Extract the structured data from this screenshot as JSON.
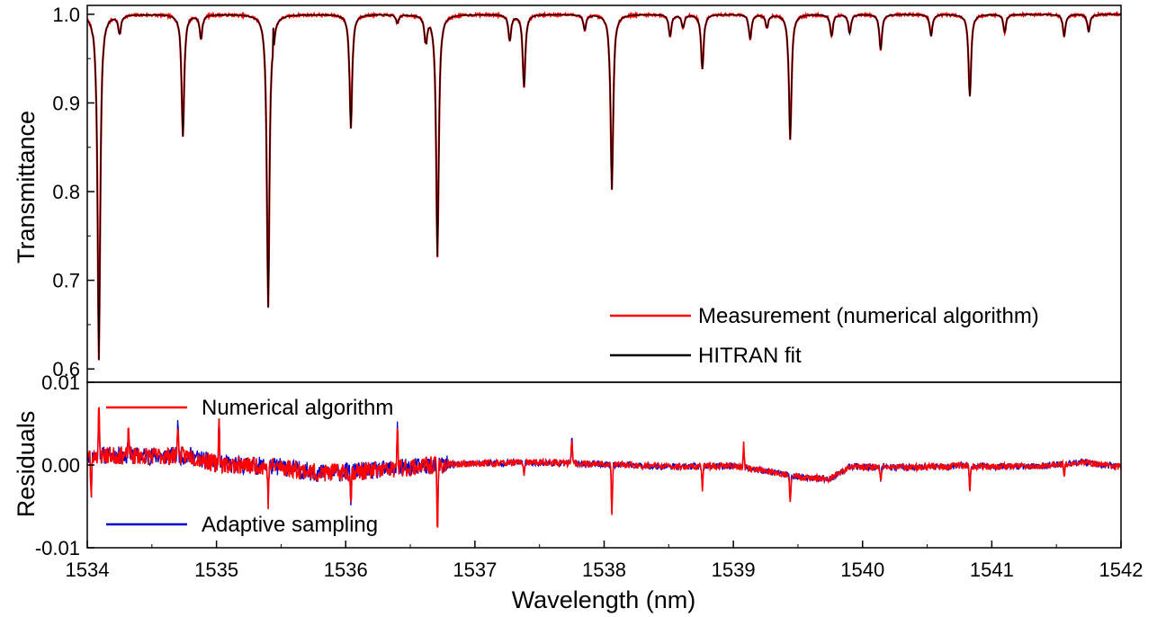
{
  "chart_data": [
    {
      "type": "line",
      "panel": "top",
      "xlabel": "Wavelength (nm)",
      "ylabel": "Transmittance",
      "xlim": [
        1534,
        1542
      ],
      "ylim": [
        0.585,
        1.01
      ],
      "y_ticks": [
        0.6,
        0.7,
        0.8,
        0.9,
        1.0
      ],
      "y_tick_labels": [
        "0.6",
        "0.7",
        "0.8",
        "0.9",
        "1.0"
      ],
      "grid": false,
      "legend_position": "bottom-right",
      "baseline": 1.0,
      "series": [
        {
          "name": "Measurement (numerical algorithm)",
          "color": "#ff0000"
        },
        {
          "name": "HITRAN fit",
          "color": "#000000"
        }
      ],
      "absorption_lines": [
        {
          "x": 1534.09,
          "y": 0.61
        },
        {
          "x": 1534.25,
          "y": 0.978
        },
        {
          "x": 1534.74,
          "y": 0.862
        },
        {
          "x": 1534.88,
          "y": 0.972
        },
        {
          "x": 1535.4,
          "y": 0.669
        },
        {
          "x": 1535.44,
          "y": 0.985
        },
        {
          "x": 1536.04,
          "y": 0.871
        },
        {
          "x": 1536.4,
          "y": 0.99
        },
        {
          "x": 1536.62,
          "y": 0.968
        },
        {
          "x": 1536.71,
          "y": 0.727
        },
        {
          "x": 1537.27,
          "y": 0.97
        },
        {
          "x": 1537.38,
          "y": 0.918
        },
        {
          "x": 1537.85,
          "y": 0.982
        },
        {
          "x": 1538.06,
          "y": 0.802
        },
        {
          "x": 1538.51,
          "y": 0.975
        },
        {
          "x": 1538.61,
          "y": 0.985
        },
        {
          "x": 1538.76,
          "y": 0.938
        },
        {
          "x": 1539.13,
          "y": 0.972
        },
        {
          "x": 1539.26,
          "y": 0.985
        },
        {
          "x": 1539.44,
          "y": 0.859
        },
        {
          "x": 1539.76,
          "y": 0.975
        },
        {
          "x": 1539.9,
          "y": 0.978
        },
        {
          "x": 1540.14,
          "y": 0.96
        },
        {
          "x": 1540.53,
          "y": 0.975
        },
        {
          "x": 1540.83,
          "y": 0.907
        },
        {
          "x": 1541.1,
          "y": 0.98
        },
        {
          "x": 1541.56,
          "y": 0.975
        },
        {
          "x": 1541.75,
          "y": 0.98
        }
      ]
    },
    {
      "type": "line",
      "panel": "bottom",
      "xlabel": "Wavelength (nm)",
      "ylabel": "Residuals",
      "xlim": [
        1534,
        1542
      ],
      "ylim": [
        -0.01,
        0.01
      ],
      "x_ticks": [
        1534,
        1535,
        1536,
        1537,
        1538,
        1539,
        1540,
        1541,
        1542
      ],
      "x_tick_labels": [
        "1534",
        "1535",
        "1536",
        "1537",
        "1538",
        "1539",
        "1540",
        "1541",
        "1542"
      ],
      "y_ticks": [
        -0.01,
        0.0,
        0.01
      ],
      "y_tick_labels": [
        "-0.01",
        "0.00",
        "0.01"
      ],
      "grid": false,
      "legend_position": "left",
      "series": [
        {
          "name": "Numerical algorithm",
          "color": "#ff0000"
        },
        {
          "name": "Adaptive sampling",
          "color": "#0000cc"
        }
      ],
      "baseline_trend": [
        {
          "x": 1534.0,
          "y": 0.0012
        },
        {
          "x": 1534.5,
          "y": 0.0011
        },
        {
          "x": 1534.8,
          "y": 0.0011
        },
        {
          "x": 1535.0,
          "y": 0.0001
        },
        {
          "x": 1535.5,
          "y": -0.0002
        },
        {
          "x": 1535.8,
          "y": -0.001
        },
        {
          "x": 1536.3,
          "y": -0.0006
        },
        {
          "x": 1536.6,
          "y": -0.0001
        },
        {
          "x": 1537.0,
          "y": 0.0002
        },
        {
          "x": 1537.5,
          "y": 0.0003
        },
        {
          "x": 1538.0,
          "y": 0.0001
        },
        {
          "x": 1538.5,
          "y": -0.0002
        },
        {
          "x": 1539.0,
          "y": -0.0001
        },
        {
          "x": 1539.55,
          "y": -0.0015
        },
        {
          "x": 1539.75,
          "y": -0.0017
        },
        {
          "x": 1539.9,
          "y": -0.0002
        },
        {
          "x": 1540.3,
          "y": -0.0003
        },
        {
          "x": 1540.8,
          "y": -0.0001
        },
        {
          "x": 1541.3,
          "y": -0.0002
        },
        {
          "x": 1541.7,
          "y": 0.0003
        },
        {
          "x": 1542.0,
          "y": -0.0002
        }
      ],
      "spikes": [
        {
          "x": 1534.03,
          "y": -0.005
        },
        {
          "x": 1534.09,
          "y": 0.0055
        },
        {
          "x": 1534.32,
          "y": 0.0035
        },
        {
          "x": 1534.7,
          "y": 0.0042
        },
        {
          "x": 1535.02,
          "y": 0.0053
        },
        {
          "x": 1535.4,
          "y": -0.0042
        },
        {
          "x": 1536.04,
          "y": -0.0036
        },
        {
          "x": 1536.4,
          "y": 0.0053
        },
        {
          "x": 1536.71,
          "y": -0.0082
        },
        {
          "x": 1537.38,
          "y": -0.0014
        },
        {
          "x": 1537.75,
          "y": 0.0032
        },
        {
          "x": 1538.06,
          "y": -0.0062
        },
        {
          "x": 1538.76,
          "y": -0.0028
        },
        {
          "x": 1539.08,
          "y": 0.0028
        },
        {
          "x": 1539.44,
          "y": -0.0036
        },
        {
          "x": 1540.14,
          "y": -0.0018
        },
        {
          "x": 1540.83,
          "y": -0.0033
        },
        {
          "x": 1541.56,
          "y": -0.0015
        }
      ]
    }
  ]
}
